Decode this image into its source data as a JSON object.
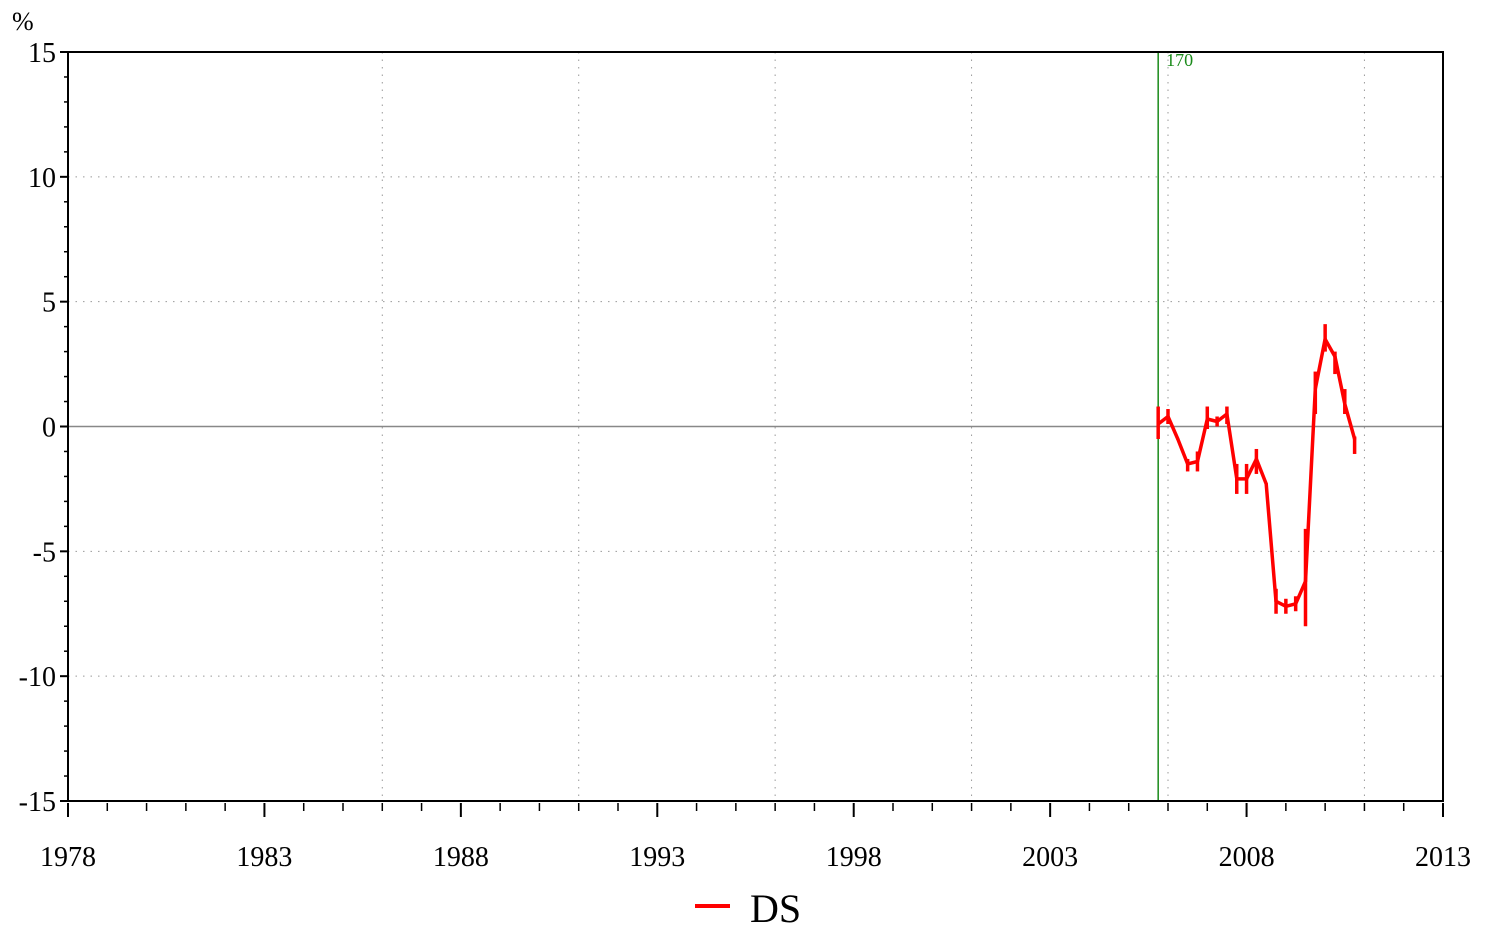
{
  "chart_data": {
    "type": "line",
    "title": "",
    "xlabel": "",
    "ylabel": "%",
    "xlim": [
      1978,
      2013
    ],
    "ylim": [
      -15,
      15
    ],
    "x_ticks": [
      1978,
      1983,
      1988,
      1993,
      1998,
      2003,
      2008,
      2013
    ],
    "y_ticks": [
      -15,
      -10,
      -5,
      0,
      5,
      10,
      15
    ],
    "grid": true,
    "legend_position": "bottom-center",
    "annotations": [
      {
        "type": "vertical-line",
        "x": 2005.75,
        "label": "170",
        "color": "#1a8a1a"
      }
    ],
    "series": [
      {
        "name": "DS",
        "color": "#ff0000",
        "points": [
          [
            2005.75,
            0.1
          ],
          [
            2006.0,
            0.4
          ],
          [
            2006.25,
            -0.5
          ],
          [
            2006.5,
            -1.5
          ],
          [
            2006.75,
            -1.4
          ],
          [
            2007.0,
            0.3
          ],
          [
            2007.25,
            0.2
          ],
          [
            2007.5,
            0.5
          ],
          [
            2007.75,
            -2.1
          ],
          [
            2008.0,
            -2.1
          ],
          [
            2008.25,
            -1.3
          ],
          [
            2008.5,
            -2.3
          ],
          [
            2008.75,
            -7.0
          ],
          [
            2009.0,
            -7.2
          ],
          [
            2009.25,
            -7.1
          ],
          [
            2009.5,
            -6.2
          ],
          [
            2009.75,
            1.5
          ],
          [
            2010.0,
            3.5
          ],
          [
            2010.25,
            2.8
          ],
          [
            2010.5,
            0.9
          ],
          [
            2010.75,
            -0.5
          ]
        ],
        "range_low": [
          -0.5,
          0.1,
          -0.5,
          -1.8,
          -1.8,
          -0.1,
          0.0,
          0.1,
          -2.7,
          -2.7,
          -1.9,
          -2.3,
          -7.5,
          -7.5,
          -7.4,
          -8.0,
          0.5,
          3.0,
          2.1,
          0.5,
          -1.1
        ],
        "range_high": [
          0.8,
          0.7,
          -0.5,
          -1.3,
          -1.0,
          0.8,
          0.4,
          0.8,
          -1.5,
          -1.5,
          -0.9,
          -2.3,
          -6.5,
          -6.9,
          -6.8,
          -4.1,
          2.2,
          4.1,
          3.0,
          1.5,
          -0.4
        ]
      }
    ]
  }
}
